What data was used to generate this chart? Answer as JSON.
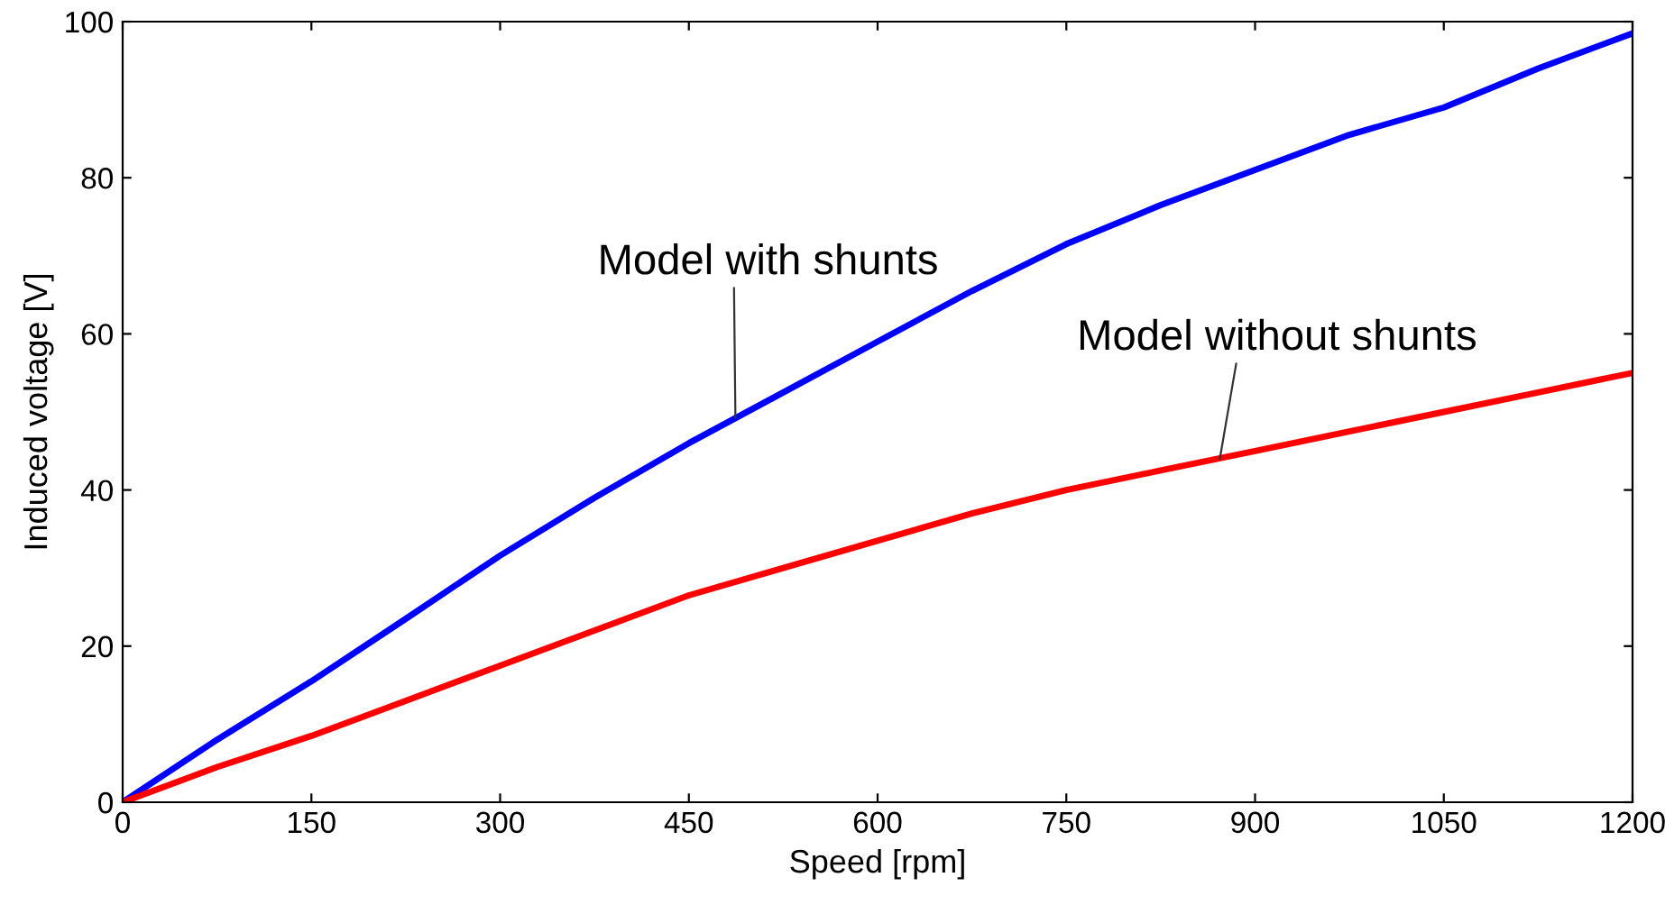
{
  "chart_data": {
    "type": "line",
    "xlabel": "Speed [rpm]",
    "ylabel": "Induced voltage [V]",
    "x": [
      0,
      75,
      150,
      225,
      300,
      375,
      450,
      525,
      600,
      675,
      750,
      825,
      900,
      975,
      1050,
      1125,
      1200
    ],
    "series": [
      {
        "color": "#0000ff",
        "values": [
          0,
          8,
          15.5,
          23.5,
          31.6,
          39,
          46,
          52.5,
          59,
          65.5,
          71.5,
          76.5,
          81,
          85.5,
          89,
          94,
          98.5
        ]
      },
      {
        "color": "#ff0000",
        "values": [
          0,
          4.5,
          8.5,
          13,
          17.5,
          22,
          26.5,
          30,
          33.5,
          37,
          40,
          42.5,
          45,
          47.5,
          50,
          52.5,
          55
        ]
      }
    ],
    "annotations": [
      {
        "text": "Model with shunts",
        "x": 487,
        "y": 49.2
      },
      {
        "text": "Model without shunts",
        "x": 872,
        "y": 44
      }
    ],
    "xlim": [
      0,
      1200
    ],
    "ylim": [
      0,
      100
    ],
    "xticks": [
      0,
      150,
      300,
      450,
      600,
      750,
      900,
      1050,
      1200
    ],
    "yticks": [
      0,
      20,
      40,
      60,
      80,
      100
    ],
    "grid": false,
    "legend": false,
    "marker": "none",
    "line_style": "solid"
  }
}
